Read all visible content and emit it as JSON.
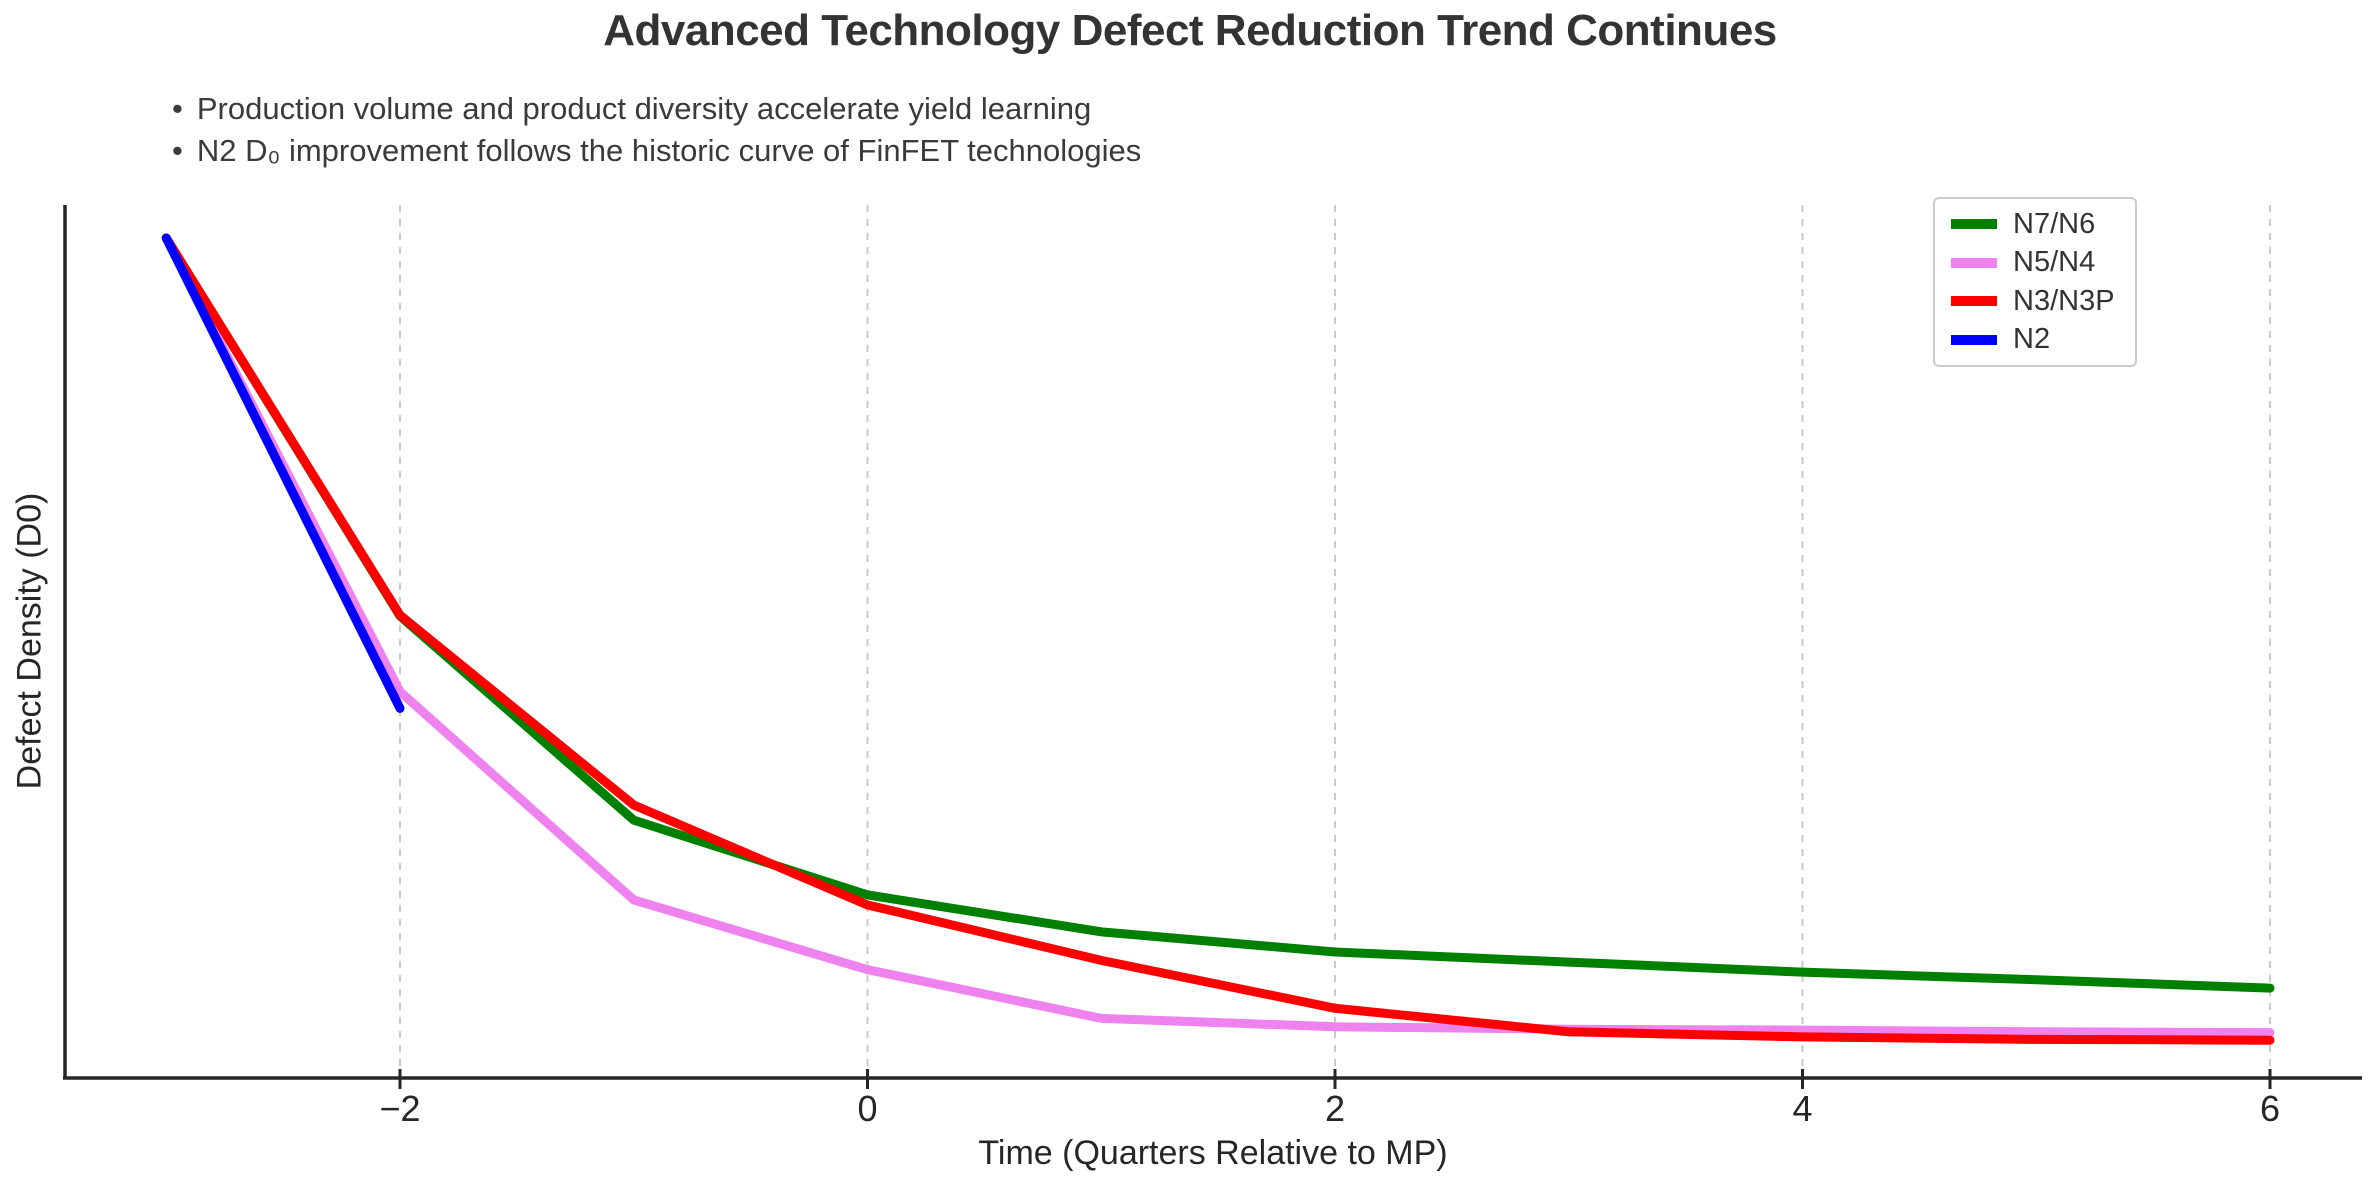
{
  "title": "Advanced Technology Defect Reduction Trend Continues",
  "bullet_char": "•",
  "bullets": [
    "Production volume and product diversity accelerate yield learning",
    "N2 D₀ improvement follows the historic curve of FinFET technologies"
  ],
  "chart_data": {
    "type": "line",
    "title": "Advanced Technology Defect Reduction Trend Continues",
    "xlabel": "Time (Quarters Relative to MP)",
    "ylabel": "Defect Density (D0)",
    "xlim": [
      -3.45,
      6.4
    ],
    "ylim": [
      0,
      1.04
    ],
    "y_axis_note": "no y tick labels shown; values normalized to starting defect density = 1.0",
    "grid": "vertical dashed gridlines at x ticks only",
    "legend_position": "upper-right",
    "x_ticks": [
      -2,
      0,
      2,
      4,
      6
    ],
    "x_tick_labels": [
      "−2",
      "0",
      "2",
      "4",
      "6"
    ],
    "axis_color": "#262626",
    "grid_color": "#c9c9c9",
    "series": [
      {
        "name": "N7/N6",
        "color": "#008000",
        "x": [
          -3,
          -2,
          -1,
          0,
          1,
          2,
          3,
          4,
          5,
          6
        ],
        "y": [
          1.0,
          0.55,
          0.307,
          0.218,
          0.174,
          0.15,
          0.138,
          0.126,
          0.117,
          0.107
        ]
      },
      {
        "name": "N5/N4",
        "color": "#EE82EE",
        "x": [
          -3,
          -2,
          -1,
          0,
          1,
          2,
          3,
          4,
          5,
          6
        ],
        "y": [
          1.0,
          0.46,
          0.212,
          0.129,
          0.071,
          0.061,
          0.058,
          0.057,
          0.055,
          0.054
        ]
      },
      {
        "name": "N3/N3P",
        "color": "#FF0000",
        "x": [
          -3,
          -2,
          -1,
          0,
          1,
          2,
          3,
          4,
          5,
          6
        ],
        "y": [
          1.0,
          0.551,
          0.325,
          0.206,
          0.14,
          0.083,
          0.055,
          0.049,
          0.046,
          0.045
        ]
      },
      {
        "name": "N2",
        "color": "#0000FF",
        "x": [
          -3,
          -2
        ],
        "y": [
          1.0,
          0.44
        ]
      }
    ]
  }
}
